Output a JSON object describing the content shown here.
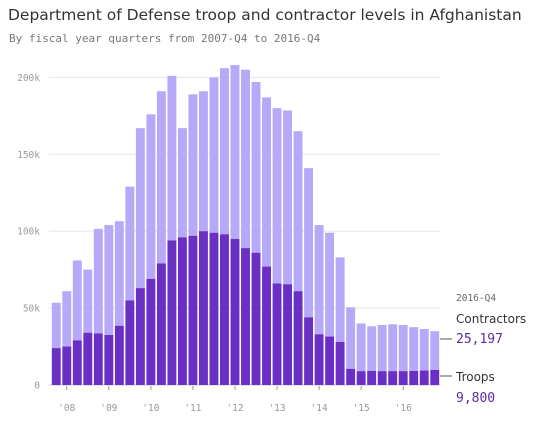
{
  "title": "Department of Defense troop and contractor levels in Afghanistan",
  "subtitle": "By fiscal year quarters from 2007-Q4 to 2016-Q4",
  "colors": {
    "troops": "#6a2fc4",
    "contractors": "#b8a8f8",
    "grid": "#e6e6e6",
    "axis": "#999999",
    "annotation_value": "#5a2aa8"
  },
  "annotation": {
    "period": "2016-Q4",
    "contractors_label": "Contractors",
    "contractors_value": "25,197",
    "troops_label": "Troops",
    "troops_value": "9,800"
  },
  "chart_data": {
    "type": "bar",
    "stacked": true,
    "title": "Department of Defense troop and contractor levels in Afghanistan",
    "subtitle": "By fiscal year quarters from 2007-Q4 to 2016-Q4",
    "xlabel": "",
    "ylabel": "",
    "ylim": [
      0,
      210000
    ],
    "yticks": [
      0,
      50000,
      100000,
      150000,
      200000
    ],
    "ytick_labels": [
      "0",
      "50k",
      "100k",
      "150k",
      "200k"
    ],
    "xtick_labels": [
      "'08",
      "'09",
      "'10",
      "'11",
      "'12",
      "'13",
      "'14",
      "'15",
      "'16"
    ],
    "xtick_indices": [
      1,
      5,
      9,
      13,
      17,
      21,
      25,
      29,
      33
    ],
    "grid": true,
    "categories": [
      "2007-Q4",
      "2008-Q1",
      "2008-Q2",
      "2008-Q3",
      "2008-Q4",
      "2009-Q1",
      "2009-Q2",
      "2009-Q3",
      "2009-Q4",
      "2010-Q1",
      "2010-Q2",
      "2010-Q3",
      "2010-Q4",
      "2011-Q1",
      "2011-Q2",
      "2011-Q3",
      "2011-Q4",
      "2012-Q1",
      "2012-Q2",
      "2012-Q3",
      "2012-Q4",
      "2013-Q1",
      "2013-Q2",
      "2013-Q3",
      "2013-Q4",
      "2014-Q1",
      "2014-Q2",
      "2014-Q3",
      "2014-Q4",
      "2015-Q1",
      "2015-Q2",
      "2015-Q3",
      "2015-Q4",
      "2016-Q1",
      "2016-Q2",
      "2016-Q3",
      "2016-Q4"
    ],
    "series": [
      {
        "name": "Troops",
        "values": [
          24000,
          25000,
          29000,
          34000,
          33500,
          32500,
          38500,
          55000,
          63000,
          69000,
          79000,
          94000,
          96000,
          97000,
          100000,
          99000,
          98000,
          95000,
          89000,
          86000,
          77000,
          66000,
          65500,
          61000,
          44000,
          33000,
          31500,
          28000,
          10500,
          9000,
          9200,
          9000,
          9000,
          9000,
          9100,
          9400,
          9800
        ]
      },
      {
        "name": "Contractors",
        "values": [
          29500,
          36000,
          52000,
          41000,
          68000,
          71500,
          68000,
          74000,
          104000,
          107000,
          112000,
          107000,
          71000,
          92000,
          91000,
          101000,
          108000,
          113000,
          116000,
          111000,
          110000,
          114000,
          113000,
          104000,
          97000,
          71000,
          67500,
          55000,
          40000,
          31000,
          29000,
          30000,
          30500,
          30000,
          28500,
          27000,
          25197
        ]
      }
    ]
  }
}
